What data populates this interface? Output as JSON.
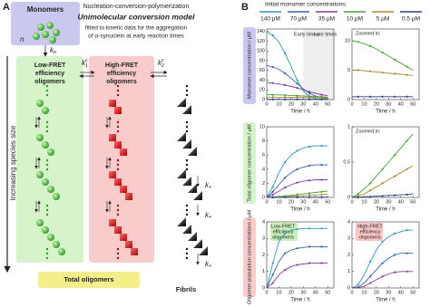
{
  "panel_a": {
    "label": "A",
    "title": "Nucleation-conversion-polymerization",
    "model": "Unimolecular conversion model",
    "subtitle_lines": [
      "fitted to kinetic data for the aggregation",
      "of α-synuclein at early reaction times"
    ],
    "monomers": "Monomers",
    "n": "n",
    "k_n": {
      "base": "k",
      "sub": "n"
    },
    "k_1c": {
      "base": "k",
      "sup": "c",
      "sub": "1"
    },
    "k_2c": {
      "base": "k",
      "sup": "c",
      "sub": "2"
    },
    "k_plus": {
      "base": "k",
      "sub": "+"
    },
    "low_fret_lines": [
      "Low-FRET",
      "efficiency",
      "oligomers"
    ],
    "high_fret_lines": [
      "High-FRET",
      "efficiency",
      "oligomers"
    ],
    "size_axis": "Increasing species size",
    "total_oligomers": "Total oligomers",
    "fibrils": "Fibrils"
  },
  "panel_b": {
    "label": "B",
    "legend_title": "Initial monomer concentrations:",
    "legend": [
      {
        "name": "140 μM",
        "color": "#2b9bb0"
      },
      {
        "name": "70 μM",
        "color": "#3a5ea8"
      },
      {
        "name": "35 μM",
        "color": "#7b3f96"
      },
      {
        "name": "10 μM",
        "color": "#4f9a3a"
      },
      {
        "name": "5 μM",
        "color": "#a88a2a"
      },
      {
        "name": "0.5 μM",
        "color": "#2f3f7a"
      }
    ],
    "row_labels": [
      "Monomer concentration / μM",
      "Total oligomer concentration / μM",
      "Oligomer population concentrations / μM"
    ]
  },
  "chart_data": [
    {
      "type": "line",
      "xlabel": "Time / h",
      "annotations": [
        "Early times",
        "Late times"
      ],
      "x": [
        0,
        5,
        10,
        15,
        20,
        25,
        30,
        35,
        40,
        45,
        50
      ],
      "xlim": [
        0,
        55
      ],
      "xticks": [
        0,
        10,
        20,
        30,
        40,
        50
      ],
      "ylim": [
        0,
        145
      ],
      "yticks": [
        0,
        20,
        40,
        60,
        80,
        100,
        120,
        140
      ],
      "series": [
        {
          "color": "#2b9bb0",
          "values": [
            140,
            132,
            118,
            95,
            68,
            40,
            18,
            6,
            2,
            1,
            0.5
          ]
        },
        {
          "color": "#3a5ea8",
          "values": [
            70,
            67,
            62,
            54,
            44,
            33,
            22,
            13,
            7,
            4,
            2
          ]
        },
        {
          "color": "#7b3f96",
          "values": [
            35,
            34,
            32,
            30,
            27,
            24,
            20,
            16,
            13,
            10,
            8
          ]
        },
        {
          "color": "#4f9a3a",
          "values": [
            10,
            9.8,
            9.5,
            9.1,
            8.6,
            8,
            7.4,
            6.8,
            6.2,
            5.6,
            5
          ]
        },
        {
          "color": "#a88a2a",
          "values": [
            5,
            5,
            4.9,
            4.8,
            4.7,
            4.6,
            4.5,
            4.4,
            4.3,
            4.2,
            4.1
          ]
        },
        {
          "color": "#2f3f7a",
          "values": [
            0.5,
            0.5,
            0.5,
            0.5,
            0.5,
            0.5,
            0.5,
            0.5,
            0.5,
            0.5,
            0.5
          ]
        }
      ]
    },
    {
      "type": "line",
      "xlabel": "Time / h",
      "annotations": [
        "Zoomed in:"
      ],
      "x": [
        0,
        5,
        10,
        15,
        20,
        25,
        30,
        35,
        40,
        45,
        50
      ],
      "xlim": [
        0,
        55
      ],
      "xticks": [
        0,
        10,
        20,
        30,
        40,
        50
      ],
      "ylim": [
        0,
        12
      ],
      "yticks": [
        0,
        5,
        10
      ],
      "series": [
        {
          "color": "#4f9a3a",
          "values": [
            10,
            9.8,
            9.5,
            9.1,
            8.6,
            8,
            7.4,
            6.8,
            6.2,
            5.6,
            5
          ]
        },
        {
          "color": "#a88a2a",
          "values": [
            5,
            5,
            4.9,
            4.8,
            4.7,
            4.6,
            4.5,
            4.4,
            4.3,
            4.2,
            4.1
          ]
        },
        {
          "color": "#2f3f7a",
          "values": [
            0.5,
            0.5,
            0.5,
            0.5,
            0.5,
            0.5,
            0.5,
            0.5,
            0.5,
            0.5,
            0.5
          ]
        }
      ]
    },
    {
      "type": "line",
      "xlabel": "Time / h",
      "annotations": [],
      "x": [
        0,
        5,
        10,
        15,
        20,
        25,
        30,
        35,
        40,
        45,
        50
      ],
      "xlim": [
        0,
        55
      ],
      "xticks": [
        0,
        10,
        20,
        30,
        40,
        50
      ],
      "ylim": [
        0,
        10
      ],
      "yticks": [
        0,
        2,
        4,
        6,
        8,
        10
      ],
      "series": [
        {
          "color": "#2b9bb0",
          "values": [
            0,
            1.5,
            3.5,
            5,
            6,
            6.6,
            7,
            7.2,
            7.3,
            7.3,
            7.3
          ]
        },
        {
          "color": "#3a5ea8",
          "values": [
            0,
            0.8,
            1.8,
            2.8,
            3.5,
            4,
            4.3,
            4.5,
            4.6,
            4.6,
            4.6
          ]
        },
        {
          "color": "#7b3f96",
          "values": [
            0,
            0.4,
            0.9,
            1.4,
            1.8,
            2.1,
            2.3,
            2.4,
            2.5,
            2.5,
            2.5
          ]
        },
        {
          "color": "#4f9a3a",
          "values": [
            0,
            0.05,
            0.12,
            0.2,
            0.3,
            0.4,
            0.5,
            0.6,
            0.7,
            0.8,
            0.9
          ]
        },
        {
          "color": "#a88a2a",
          "values": [
            0,
            0.02,
            0.05,
            0.1,
            0.15,
            0.2,
            0.25,
            0.3,
            0.35,
            0.4,
            0.45
          ]
        },
        {
          "color": "#2f3f7a",
          "values": [
            0,
            0,
            0.01,
            0.01,
            0.02,
            0.02,
            0.03,
            0.03,
            0.04,
            0.04,
            0.05
          ]
        }
      ]
    },
    {
      "type": "line",
      "xlabel": "Time / h",
      "annotations": [
        "Zoomed in:"
      ],
      "x": [
        0,
        5,
        10,
        15,
        20,
        25,
        30,
        35,
        40,
        45,
        50
      ],
      "xlim": [
        0,
        55
      ],
      "xticks": [
        0,
        10,
        20,
        30,
        40,
        50
      ],
      "ylim": [
        0,
        1
      ],
      "yticks": [
        0,
        0.5,
        1
      ],
      "series": [
        {
          "color": "#4f9a3a",
          "values": [
            0,
            0.05,
            0.12,
            0.2,
            0.3,
            0.4,
            0.5,
            0.6,
            0.7,
            0.8,
            0.9
          ]
        },
        {
          "color": "#a88a2a",
          "values": [
            0,
            0.02,
            0.05,
            0.1,
            0.15,
            0.2,
            0.25,
            0.3,
            0.35,
            0.4,
            0.45
          ]
        },
        {
          "color": "#2f3f7a",
          "values": [
            0,
            0,
            0.01,
            0.01,
            0.02,
            0.02,
            0.03,
            0.03,
            0.04,
            0.04,
            0.05
          ]
        }
      ]
    },
    {
      "type": "line",
      "xlabel": "Time / h",
      "annotations": [
        "Low-FRET",
        "efficiency",
        "oligomers"
      ],
      "x": [
        0,
        5,
        10,
        15,
        20,
        25,
        30,
        35,
        40,
        45,
        50
      ],
      "xlim": [
        0,
        55
      ],
      "xticks": [
        0,
        10,
        20,
        30,
        40,
        50
      ],
      "ylim": [
        0,
        4
      ],
      "yticks": [
        0,
        1,
        2,
        3,
        4
      ],
      "series": [
        {
          "color": "#2b9bb0",
          "values": [
            0,
            1.5,
            2.8,
            3.3,
            3.5,
            3.55,
            3.6,
            3.6,
            3.6,
            3.6,
            3.6
          ]
        },
        {
          "color": "#3a5ea8",
          "values": [
            0,
            0.8,
            1.6,
            2.1,
            2.3,
            2.4,
            2.45,
            2.5,
            2.5,
            2.5,
            2.5
          ]
        },
        {
          "color": "#7b3f96",
          "values": [
            0,
            0.3,
            0.8,
            1.1,
            1.3,
            1.4,
            1.45,
            1.5,
            1.5,
            1.5,
            1.5
          ]
        }
      ]
    },
    {
      "type": "line",
      "xlabel": "Time / h",
      "annotations": [
        "High-FRET",
        "efficiency",
        "oligomers"
      ],
      "x": [
        0,
        5,
        10,
        15,
        20,
        25,
        30,
        35,
        40,
        45,
        50
      ],
      "xlim": [
        0,
        55
      ],
      "xticks": [
        0,
        10,
        20,
        30,
        40,
        50
      ],
      "ylim": [
        0,
        4
      ],
      "yticks": [
        0,
        1,
        2,
        3,
        4
      ],
      "series": [
        {
          "color": "#2b9bb0",
          "values": [
            0,
            0.2,
            0.8,
            1.6,
            2.3,
            2.8,
            3.1,
            3.3,
            3.4,
            3.5,
            3.5
          ]
        },
        {
          "color": "#3a5ea8",
          "values": [
            0,
            0.05,
            0.3,
            0.7,
            1.1,
            1.5,
            1.8,
            2,
            2.1,
            2.1,
            2.1
          ]
        },
        {
          "color": "#7b3f96",
          "values": [
            0,
            0.02,
            0.1,
            0.3,
            0.5,
            0.7,
            0.85,
            0.95,
            1,
            1,
            1
          ]
        }
      ]
    }
  ]
}
